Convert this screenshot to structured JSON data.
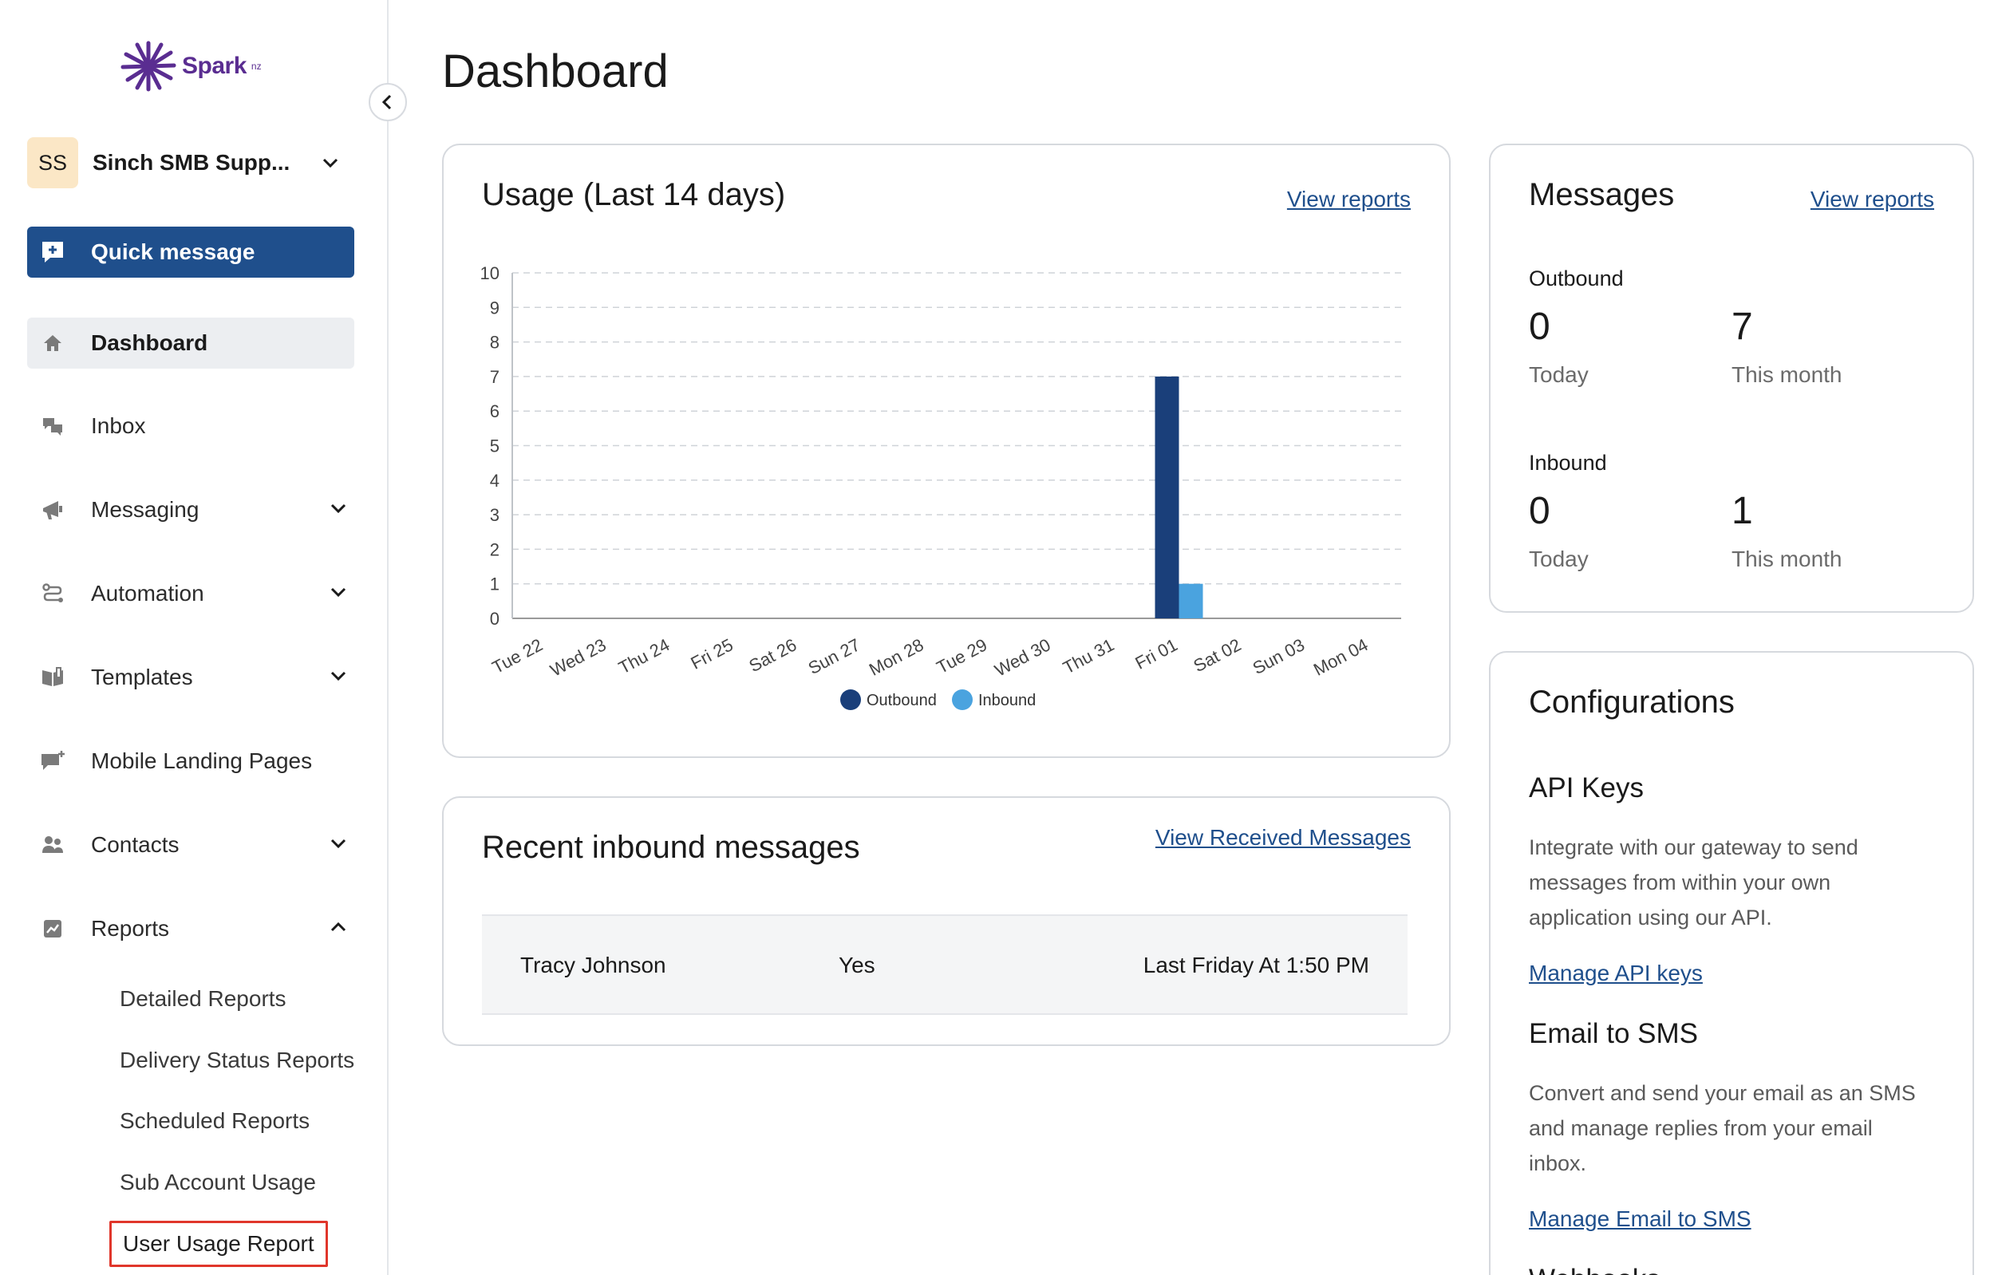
{
  "brand": {
    "name": "Spark",
    "suffix": "nz",
    "color": "#5a2d91"
  },
  "account": {
    "initials": "SS",
    "name": "Sinch SMB Supp..."
  },
  "quick_message": {
    "label": "Quick message",
    "icon": "message-plus-icon"
  },
  "sidebar": {
    "items": [
      {
        "label": "Dashboard",
        "icon": "home-icon",
        "active": true,
        "expandable": false
      },
      {
        "label": "Inbox",
        "icon": "chat-bubbles-icon",
        "expandable": false
      },
      {
        "label": "Messaging",
        "icon": "megaphone-icon",
        "expandable": true
      },
      {
        "label": "Automation",
        "icon": "workflow-icon",
        "expandable": true
      },
      {
        "label": "Templates",
        "icon": "book-icon",
        "expandable": true
      },
      {
        "label": "Mobile Landing Pages",
        "icon": "message-add-icon",
        "expandable": false
      },
      {
        "label": "Contacts",
        "icon": "people-icon",
        "expandable": true
      },
      {
        "label": "Reports",
        "icon": "chart-icon",
        "expandable": true,
        "expanded": true
      }
    ],
    "reports_sub": [
      "Detailed Reports",
      "Delivery Status Reports",
      "Scheduled Reports",
      "Sub Account Usage",
      "User Usage Report"
    ]
  },
  "page": {
    "title": "Dashboard"
  },
  "usage_card": {
    "title": "Usage (Last 14 days)",
    "link": "View reports"
  },
  "chart_data": {
    "type": "bar",
    "categories": [
      "Tue 22",
      "Wed 23",
      "Thu 24",
      "Fri 25",
      "Sat 26",
      "Sun 27",
      "Mon 28",
      "Tue 29",
      "Wed 30",
      "Thu 31",
      "Fri 01",
      "Sat 02",
      "Sun 03",
      "Mon 04"
    ],
    "series": [
      {
        "name": "Outbound",
        "color": "#1a3f7a",
        "values": [
          0,
          0,
          0,
          0,
          0,
          0,
          0,
          0,
          0,
          0,
          7,
          0,
          0,
          0
        ]
      },
      {
        "name": "Inbound",
        "color": "#4aa3df",
        "values": [
          0,
          0,
          0,
          0,
          0,
          0,
          0,
          0,
          0,
          0,
          1,
          0,
          0,
          0
        ]
      }
    ],
    "ylim": [
      0,
      10
    ],
    "yticks": [
      0,
      1,
      2,
      3,
      4,
      5,
      6,
      7,
      8,
      9,
      10
    ],
    "grid": true,
    "legend": "bottom"
  },
  "messages_card": {
    "title": "Messages",
    "link": "View reports",
    "outbound": {
      "label": "Outbound",
      "today": "0",
      "today_label": "Today",
      "month": "7",
      "month_label": "This month"
    },
    "inbound": {
      "label": "Inbound",
      "today": "0",
      "today_label": "Today",
      "month": "1",
      "month_label": "This month"
    }
  },
  "inbound_card": {
    "title": "Recent inbound messages",
    "link": "View Received Messages",
    "rows": [
      {
        "name": "Tracy Johnson",
        "message": "Yes",
        "time": "Last Friday At 1:50 PM"
      }
    ]
  },
  "config_card": {
    "title": "Configurations",
    "sections": [
      {
        "heading": "API Keys",
        "body": "Integrate with our gateway to send messages from within your own application using our API.",
        "link": "Manage API keys"
      },
      {
        "heading": "Email to SMS",
        "body": "Convert and send your email as an SMS and manage replies from your email inbox.",
        "link": "Manage Email to SMS"
      },
      {
        "heading": "Webhooks"
      }
    ]
  }
}
